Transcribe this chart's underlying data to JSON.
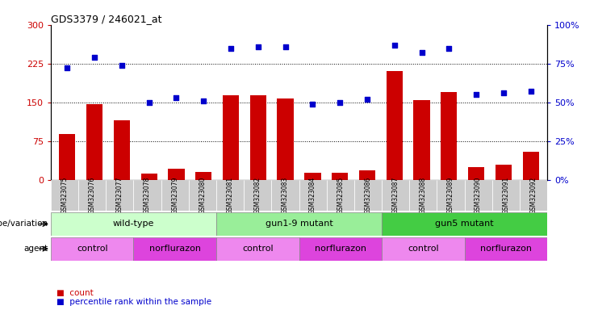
{
  "title": "GDS3379 / 246021_at",
  "samples": [
    "GSM323075",
    "GSM323076",
    "GSM323077",
    "GSM323078",
    "GSM323079",
    "GSM323080",
    "GSM323081",
    "GSM323082",
    "GSM323083",
    "GSM323084",
    "GSM323085",
    "GSM323086",
    "GSM323087",
    "GSM323088",
    "GSM323089",
    "GSM323090",
    "GSM323091",
    "GSM323092"
  ],
  "counts": [
    88,
    147,
    115,
    12,
    22,
    15,
    163,
    163,
    158,
    13,
    13,
    18,
    210,
    155,
    170,
    25,
    30,
    55
  ],
  "percentiles": [
    72,
    79,
    74,
    50,
    53,
    51,
    85,
    86,
    86,
    49,
    50,
    52,
    87,
    82,
    85,
    55,
    56,
    57
  ],
  "bar_color": "#cc0000",
  "dot_color": "#0000cc",
  "ylim_left": [
    0,
    300
  ],
  "ylim_right": [
    0,
    100
  ],
  "yticks_left": [
    0,
    75,
    150,
    225,
    300
  ],
  "yticks_right": [
    0,
    25,
    50,
    75,
    100
  ],
  "hlines": [
    75,
    150,
    225
  ],
  "genotype_groups": [
    {
      "label": "wild-type",
      "start": 0,
      "end": 5,
      "color": "#ccffcc"
    },
    {
      "label": "gun1-9 mutant",
      "start": 6,
      "end": 11,
      "color": "#99ee99"
    },
    {
      "label": "gun5 mutant",
      "start": 12,
      "end": 17,
      "color": "#44cc44"
    }
  ],
  "agent_groups": [
    {
      "label": "control",
      "start": 0,
      "end": 2,
      "color": "#ee88ee"
    },
    {
      "label": "norflurazon",
      "start": 3,
      "end": 5,
      "color": "#dd44dd"
    },
    {
      "label": "control",
      "start": 6,
      "end": 8,
      "color": "#ee88ee"
    },
    {
      "label": "norflurazon",
      "start": 9,
      "end": 11,
      "color": "#dd44dd"
    },
    {
      "label": "control",
      "start": 12,
      "end": 14,
      "color": "#ee88ee"
    },
    {
      "label": "norflurazon",
      "start": 15,
      "end": 17,
      "color": "#dd44dd"
    }
  ],
  "tick_bg_color": "#cccccc",
  "genotype_row_label": "genotype/variation",
  "agent_row_label": "agent",
  "legend_count_label": "count",
  "legend_pct_label": "percentile rank within the sample"
}
